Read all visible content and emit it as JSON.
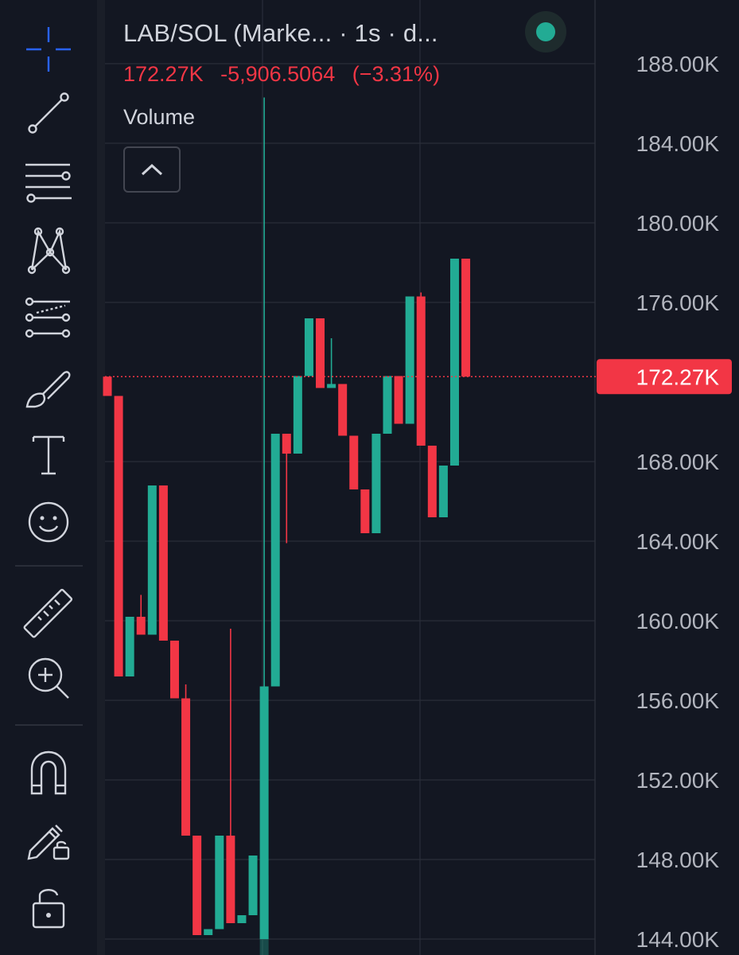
{
  "legend": {
    "title": "LAB/SOL (Marke... · 1s · d...",
    "last_price": "172.27K",
    "change": "-5,906.5064",
    "change_pct": "(−3.31%)",
    "volume_label": "Volume"
  },
  "colors": {
    "up": "#22ab94",
    "down": "#f23645",
    "background": "#131722",
    "grid": "#2a2e39",
    "text": "#d1d4dc",
    "status": "#22ab94"
  },
  "toolbar": {
    "tools": [
      "crosshair-icon",
      "trend-line-icon",
      "fib-retracement-icon",
      "xabcd-pattern-icon",
      "forecast-icon",
      "brush-icon",
      "text-icon",
      "emoji-icon",
      "ruler-icon",
      "zoom-in-icon",
      "magnet-icon",
      "lock-drawings-icon",
      "unlock-icon"
    ]
  },
  "chart_data": {
    "type": "candlestick",
    "symbol": "LAB/SOL",
    "interval": "1s",
    "y_axis": {
      "labels": [
        "188.00K",
        "184.00K",
        "180.00K",
        "176.00K",
        "172.27K",
        "168.00K",
        "164.00K",
        "160.00K",
        "156.00K",
        "152.00K",
        "148.00K",
        "144.00K"
      ],
      "ticks": [
        188000,
        184000,
        180000,
        176000,
        168000,
        164000,
        160000,
        156000,
        152000,
        148000,
        144000
      ],
      "range": [
        143200,
        191200
      ]
    },
    "last_price": 172270,
    "last_price_label": "172.27K",
    "grid": true,
    "candles": [
      {
        "o": 172270,
        "h": 172270,
        "l": 171300,
        "c": 171300
      },
      {
        "o": 171300,
        "h": 171300,
        "l": 157200,
        "c": 157200
      },
      {
        "o": 157200,
        "h": 160200,
        "l": 157200,
        "c": 160200
      },
      {
        "o": 160200,
        "h": 161300,
        "l": 159300,
        "c": 159300
      },
      {
        "o": 159300,
        "h": 166800,
        "l": 159300,
        "c": 166800
      },
      {
        "o": 166800,
        "h": 166800,
        "l": 159000,
        "c": 159000
      },
      {
        "o": 159000,
        "h": 159000,
        "l": 156100,
        "c": 156100
      },
      {
        "o": 156100,
        "h": 156800,
        "l": 149200,
        "c": 149200
      },
      {
        "o": 149200,
        "h": 149200,
        "l": 144200,
        "c": 144200
      },
      {
        "o": 144200,
        "h": 144500,
        "l": 144200,
        "c": 144500
      },
      {
        "o": 144500,
        "h": 149200,
        "l": 144500,
        "c": 149200
      },
      {
        "o": 149200,
        "h": 159600,
        "l": 144800,
        "c": 144800
      },
      {
        "o": 144800,
        "h": 145200,
        "l": 144800,
        "c": 145200
      },
      {
        "o": 145200,
        "h": 148200,
        "l": 145200,
        "c": 148200
      },
      {
        "o": 144000,
        "h": 186300,
        "l": 144000,
        "c": 156700
      },
      {
        "o": 156700,
        "h": 169400,
        "l": 156700,
        "c": 169400
      },
      {
        "o": 169400,
        "h": 169400,
        "l": 163900,
        "c": 168400
      },
      {
        "o": 168400,
        "h": 172300,
        "l": 168400,
        "c": 172300
      },
      {
        "o": 172300,
        "h": 175200,
        "l": 172300,
        "c": 175200
      },
      {
        "o": 175200,
        "h": 175200,
        "l": 171700,
        "c": 171700
      },
      {
        "o": 171700,
        "h": 174200,
        "l": 171700,
        "c": 171900
      },
      {
        "o": 171900,
        "h": 171900,
        "l": 169300,
        "c": 169300
      },
      {
        "o": 169300,
        "h": 169300,
        "l": 166600,
        "c": 166600
      },
      {
        "o": 166600,
        "h": 166600,
        "l": 164400,
        "c": 164400
      },
      {
        "o": 164400,
        "h": 169400,
        "l": 164400,
        "c": 169400
      },
      {
        "o": 169400,
        "h": 172300,
        "l": 169400,
        "c": 172300
      },
      {
        "o": 172300,
        "h": 172300,
        "l": 169900,
        "c": 169900
      },
      {
        "o": 169900,
        "h": 176300,
        "l": 169900,
        "c": 176300
      },
      {
        "o": 176300,
        "h": 176500,
        "l": 168800,
        "c": 168800
      },
      {
        "o": 168800,
        "h": 168800,
        "l": 165200,
        "c": 165200
      },
      {
        "o": 165200,
        "h": 167800,
        "l": 165200,
        "c": 167800
      },
      {
        "o": 167800,
        "h": 178200,
        "l": 167800,
        "c": 178200
      },
      {
        "o": 178200,
        "h": 178200,
        "l": 172270,
        "c": 172270
      }
    ],
    "volume_bars": [
      {
        "index": 14,
        "value": 4000,
        "color": "up"
      }
    ]
  }
}
